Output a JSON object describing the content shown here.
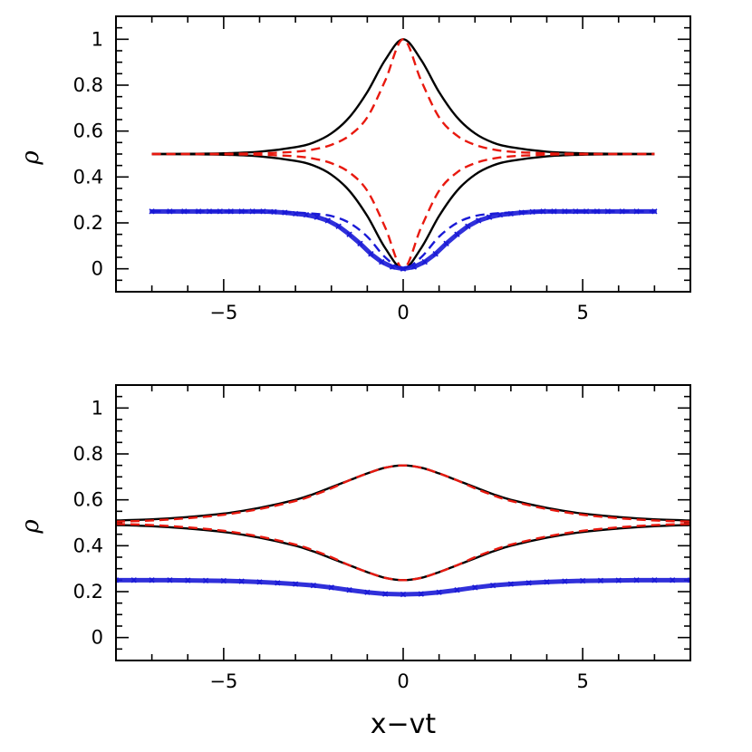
{
  "chart_data": [
    {
      "type": "line",
      "panel": "top",
      "xlim": [
        -8,
        8
      ],
      "ylim": [
        -0.1,
        1.1
      ],
      "xticks": [
        "−5",
        "0",
        "5"
      ],
      "xtick_values": [
        -5,
        0,
        5
      ],
      "yticks": [
        "0",
        "0.2",
        "0.4",
        "0.6",
        "0.8",
        "1"
      ],
      "ytick_values": [
        0,
        0.2,
        0.4,
        0.6,
        0.8,
        1.0
      ],
      "ylabel": "ρ",
      "xlabel": "",
      "grid": false,
      "series": [
        {
          "style": "solid",
          "color": "#000000",
          "x": [
            -7,
            -6,
            -5,
            -4,
            -3,
            -2.5,
            -2,
            -1.5,
            -1,
            -0.5,
            0,
            0.5,
            1,
            1.5,
            2,
            2.5,
            3,
            4,
            5,
            6,
            7
          ],
          "y": [
            0.5,
            0.501,
            0.503,
            0.51,
            0.53,
            0.55,
            0.59,
            0.66,
            0.77,
            0.91,
            1.0,
            0.91,
            0.77,
            0.66,
            0.59,
            0.55,
            0.53,
            0.51,
            0.503,
            0.501,
            0.5
          ]
        },
        {
          "style": "solid",
          "color": "#000000",
          "x": [
            -7,
            -6,
            -5,
            -4,
            -3,
            -2.5,
            -2,
            -1.5,
            -1,
            -0.5,
            0,
            0.5,
            1,
            1.5,
            2,
            2.5,
            3,
            4,
            5,
            6,
            7
          ],
          "y": [
            0.5,
            0.499,
            0.497,
            0.49,
            0.47,
            0.45,
            0.41,
            0.34,
            0.23,
            0.09,
            0.0,
            0.09,
            0.23,
            0.34,
            0.41,
            0.45,
            0.47,
            0.49,
            0.497,
            0.499,
            0.5
          ]
        },
        {
          "style": "dashed",
          "color": "#e8190f",
          "x": [
            -7,
            -6,
            -5,
            -4,
            -3,
            -2.5,
            -2,
            -1.5,
            -1,
            -0.5,
            0,
            0.5,
            1,
            1.5,
            2,
            2.5,
            3,
            4,
            5,
            6,
            7
          ],
          "y": [
            0.5,
            0.5,
            0.501,
            0.503,
            0.51,
            0.52,
            0.54,
            0.58,
            0.66,
            0.82,
            1.0,
            0.82,
            0.66,
            0.58,
            0.54,
            0.52,
            0.51,
            0.503,
            0.501,
            0.5,
            0.5
          ]
        },
        {
          "style": "dashed",
          "color": "#e8190f",
          "x": [
            -7,
            -6,
            -5,
            -4,
            -3,
            -2.5,
            -2,
            -1.5,
            -1,
            -0.5,
            0,
            0.5,
            1,
            1.5,
            2,
            2.5,
            3,
            4,
            5,
            6,
            7
          ],
          "y": [
            0.5,
            0.5,
            0.499,
            0.497,
            0.49,
            0.48,
            0.46,
            0.42,
            0.34,
            0.18,
            0.0,
            0.18,
            0.34,
            0.42,
            0.46,
            0.48,
            0.49,
            0.497,
            0.499,
            0.5,
            0.5
          ]
        },
        {
          "style": "dashed",
          "color": "#1a1ad6",
          "x": [
            -7,
            -6,
            -5,
            -4,
            -3,
            -2.5,
            -2,
            -1.5,
            -1,
            -0.5,
            0,
            0.5,
            1,
            1.5,
            2,
            2.5,
            3,
            4,
            5,
            6,
            7
          ],
          "y": [
            0.25,
            0.25,
            0.25,
            0.25,
            0.245,
            0.24,
            0.23,
            0.2,
            0.14,
            0.05,
            0.0,
            0.05,
            0.14,
            0.2,
            0.23,
            0.24,
            0.245,
            0.25,
            0.25,
            0.25,
            0.25
          ]
        },
        {
          "style": "markers",
          "color": "#1a1ad6",
          "x": [
            -7,
            -6.5,
            -6.1,
            -5.7,
            -5.4,
            -5.1,
            -4.8,
            -4.5,
            -4.2,
            -3.9,
            -3.6,
            -3.3,
            -3.0,
            -2.7,
            -2.4,
            -2.1,
            -1.8,
            -1.5,
            -1.2,
            -0.9,
            -0.6,
            -0.3,
            0,
            0.3,
            0.6,
            0.9,
            1.2,
            1.5,
            1.8,
            2.1,
            2.4,
            2.7,
            3.0,
            3.3,
            3.6,
            3.9,
            4.2,
            4.5,
            4.8,
            5.1,
            5.4,
            5.7,
            6.1,
            6.5,
            7
          ],
          "y": [
            0.25,
            0.25,
            0.25,
            0.25,
            0.25,
            0.25,
            0.25,
            0.25,
            0.25,
            0.25,
            0.248,
            0.245,
            0.24,
            0.235,
            0.225,
            0.21,
            0.185,
            0.15,
            0.11,
            0.065,
            0.03,
            0.008,
            0.0,
            0.008,
            0.03,
            0.065,
            0.11,
            0.15,
            0.185,
            0.21,
            0.225,
            0.235,
            0.24,
            0.245,
            0.248,
            0.25,
            0.25,
            0.25,
            0.25,
            0.25,
            0.25,
            0.25,
            0.25,
            0.25,
            0.25
          ]
        }
      ]
    },
    {
      "type": "line",
      "panel": "bottom",
      "xlim": [
        -8,
        8
      ],
      "ylim": [
        -0.1,
        1.1
      ],
      "xticks": [
        "−5",
        "0",
        "5"
      ],
      "xtick_values": [
        -5,
        0,
        5
      ],
      "yticks": [
        "0",
        "0.2",
        "0.4",
        "0.6",
        "0.8",
        "1"
      ],
      "ytick_values": [
        0,
        0.2,
        0.4,
        0.6,
        0.8,
        1.0
      ],
      "ylabel": "ρ",
      "xlabel": "x−vt",
      "grid": false,
      "series": [
        {
          "style": "solid",
          "color": "#000000",
          "x": [
            -8,
            -7,
            -6,
            -5,
            -4,
            -3,
            -2.5,
            -2,
            -1.5,
            -1,
            -0.5,
            0,
            0.5,
            1,
            1.5,
            2,
            2.5,
            3,
            4,
            5,
            6,
            7,
            8
          ],
          "y": [
            0.51,
            0.515,
            0.525,
            0.54,
            0.565,
            0.6,
            0.625,
            0.655,
            0.685,
            0.715,
            0.74,
            0.75,
            0.74,
            0.715,
            0.685,
            0.655,
            0.625,
            0.6,
            0.565,
            0.54,
            0.525,
            0.515,
            0.51
          ]
        },
        {
          "style": "solid",
          "color": "#000000",
          "x": [
            -8,
            -7,
            -6,
            -5,
            -4,
            -3,
            -2.5,
            -2,
            -1.5,
            -1,
            -0.5,
            0,
            0.5,
            1,
            1.5,
            2,
            2.5,
            3,
            4,
            5,
            6,
            7,
            8
          ],
          "y": [
            0.49,
            0.485,
            0.475,
            0.46,
            0.435,
            0.4,
            0.375,
            0.345,
            0.315,
            0.285,
            0.26,
            0.25,
            0.26,
            0.285,
            0.315,
            0.345,
            0.375,
            0.4,
            0.435,
            0.46,
            0.475,
            0.485,
            0.49
          ]
        },
        {
          "style": "dashed",
          "color": "#e8190f",
          "x": [
            -8,
            -7,
            -6,
            -5,
            -4,
            -3,
            -2.5,
            -2,
            -1.5,
            -1,
            -0.5,
            0,
            0.5,
            1,
            1.5,
            2,
            2.5,
            3,
            4,
            5,
            6,
            7,
            8
          ],
          "y": [
            0.505,
            0.51,
            0.52,
            0.535,
            0.56,
            0.595,
            0.62,
            0.65,
            0.685,
            0.715,
            0.74,
            0.75,
            0.74,
            0.715,
            0.685,
            0.65,
            0.62,
            0.595,
            0.56,
            0.535,
            0.52,
            0.51,
            0.505
          ]
        },
        {
          "style": "dashed",
          "color": "#e8190f",
          "x": [
            -8,
            -7,
            -6,
            -5,
            -4,
            -3,
            -2.5,
            -2,
            -1.5,
            -1,
            -0.5,
            0,
            0.5,
            1,
            1.5,
            2,
            2.5,
            3,
            4,
            5,
            6,
            7,
            8
          ],
          "y": [
            0.495,
            0.49,
            0.48,
            0.465,
            0.44,
            0.405,
            0.38,
            0.35,
            0.315,
            0.285,
            0.26,
            0.25,
            0.26,
            0.285,
            0.315,
            0.35,
            0.38,
            0.405,
            0.44,
            0.465,
            0.48,
            0.49,
            0.495
          ]
        },
        {
          "style": "markers",
          "color": "#1a1ad6",
          "x": [
            -8,
            -7.5,
            -7,
            -6.5,
            -6,
            -5.5,
            -5,
            -4.5,
            -4,
            -3.5,
            -3,
            -2.5,
            -2,
            -1.5,
            -1,
            -0.5,
            0,
            0.5,
            1,
            1.5,
            2,
            2.5,
            3,
            3.5,
            4,
            4.5,
            5,
            5.5,
            6,
            6.5,
            7,
            7.5,
            8
          ],
          "y": [
            0.25,
            0.25,
            0.25,
            0.25,
            0.249,
            0.248,
            0.247,
            0.245,
            0.242,
            0.238,
            0.233,
            0.227,
            0.218,
            0.207,
            0.197,
            0.19,
            0.188,
            0.19,
            0.197,
            0.207,
            0.218,
            0.227,
            0.233,
            0.238,
            0.242,
            0.245,
            0.247,
            0.248,
            0.249,
            0.25,
            0.25,
            0.25,
            0.25
          ]
        }
      ]
    }
  ]
}
